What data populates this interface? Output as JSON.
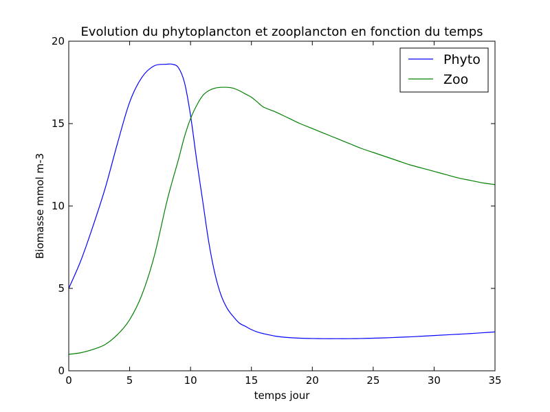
{
  "chart_data": {
    "type": "line",
    "title": "Evolution du phytoplancton et zooplancton en fonction du temps",
    "xlabel": "temps jour",
    "ylabel": "Biomasse mmol m-3",
    "xlim": [
      0,
      35
    ],
    "ylim": [
      0,
      20
    ],
    "xticks": [
      0,
      5,
      10,
      15,
      20,
      25,
      30,
      35
    ],
    "yticks": [
      0,
      5,
      10,
      15,
      20
    ],
    "grid": false,
    "legend": "top-right",
    "x": [
      0,
      1,
      2,
      3,
      4,
      5,
      6,
      7,
      8,
      8.5,
      9,
      9.5,
      10,
      10.5,
      11,
      11.5,
      12,
      12.5,
      13,
      13.5,
      14,
      14.5,
      15,
      15.5,
      16,
      17,
      18,
      19,
      20,
      21,
      22,
      23,
      24,
      25,
      26,
      27,
      28,
      29,
      30,
      31,
      32,
      33,
      34,
      35
    ],
    "series": [
      {
        "name": "Phyto",
        "color": "#0000ff",
        "values": [
          5.0,
          6.7,
          8.8,
          11.1,
          13.8,
          16.3,
          17.8,
          18.5,
          18.6,
          18.6,
          18.4,
          17.5,
          15.5,
          12.8,
          10.3,
          7.8,
          5.9,
          4.6,
          3.8,
          3.3,
          2.9,
          2.7,
          2.5,
          2.35,
          2.25,
          2.1,
          2.02,
          1.98,
          1.96,
          1.95,
          1.95,
          1.95,
          1.96,
          1.98,
          2.0,
          2.03,
          2.06,
          2.1,
          2.14,
          2.18,
          2.22,
          2.26,
          2.31,
          2.36
        ]
      },
      {
        "name": "Zoo",
        "color": "#008000",
        "values": [
          1.0,
          1.1,
          1.3,
          1.6,
          2.2,
          3.1,
          4.6,
          6.9,
          10.1,
          11.5,
          12.8,
          14.2,
          15.3,
          16.1,
          16.7,
          17.0,
          17.15,
          17.2,
          17.2,
          17.15,
          17.0,
          16.8,
          16.6,
          16.3,
          16.0,
          15.7,
          15.35,
          15.0,
          14.7,
          14.4,
          14.1,
          13.8,
          13.5,
          13.25,
          13.0,
          12.75,
          12.5,
          12.3,
          12.1,
          11.9,
          11.7,
          11.55,
          11.4,
          11.3
        ]
      }
    ]
  }
}
